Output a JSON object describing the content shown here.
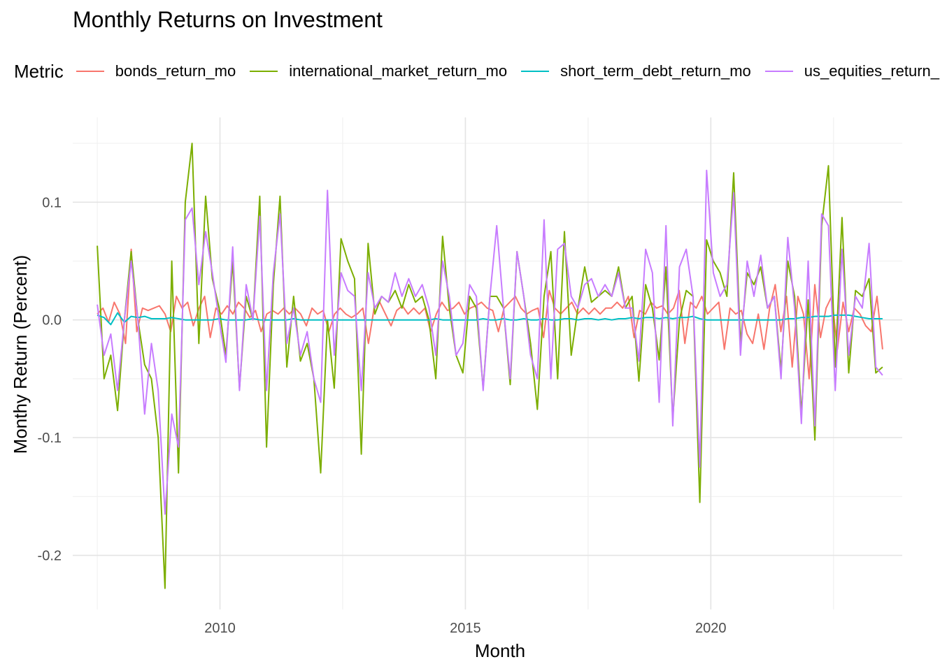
{
  "chart_data": {
    "type": "line",
    "title": "Monthly Returns on Investment",
    "xlabel": "Month",
    "ylabel": "Monthy Return (Percent)",
    "legend_title": "Metric",
    "legend_position": "top",
    "grid": true,
    "xlim": [
      2007.0,
      2023.9
    ],
    "ylim": [
      -0.246,
      0.172
    ],
    "x_ticks": [
      2010,
      2015,
      2020
    ],
    "y_ticks": [
      -0.2,
      -0.1,
      0.0,
      0.1
    ],
    "y_tick_labels": [
      "-0.2",
      "-0.1",
      "0.0",
      "0.1"
    ],
    "x_start": 2007.5,
    "x_step": 0.25,
    "series": [
      {
        "name": "bonds_return_mo",
        "color": "#F8766D",
        "values": [
          0.005,
          0.01,
          -0.002,
          0.015,
          0.005,
          -0.02,
          0.06,
          -0.01,
          0.01,
          0.008,
          0.01,
          0.012,
          0.005,
          -0.01,
          0.02,
          0.01,
          0.015,
          -0.005,
          0.01,
          0.02,
          -0.015,
          0.01,
          0.005,
          0.012,
          0.005,
          0.015,
          0.01,
          0.002,
          0.008,
          -0.01,
          0.005,
          0.008,
          0.005,
          0.01,
          0.005,
          0.01,
          0.005,
          -0.005,
          0.01,
          0.005,
          0.008,
          -0.01,
          0.005,
          0.01,
          0.005,
          0.002,
          0.005,
          0.01,
          -0.02,
          0.01,
          0.015,
          0.005,
          -0.005,
          0.008,
          0.012,
          0.005,
          0.01,
          0.005,
          0.01,
          -0.01,
          0.005,
          0.015,
          0.008,
          0.01,
          0.015,
          0.005,
          0.01,
          0.012,
          0.015,
          0.01,
          0.008,
          -0.01,
          0.01,
          0.015,
          0.02,
          0.01,
          0.005,
          0.008,
          0.01,
          -0.015,
          0.025,
          0.01,
          0.005,
          0.01,
          0.015,
          0.005,
          0.01,
          0.005,
          0.01,
          0.005,
          0.01,
          0.01,
          0.015,
          0.01,
          0.02,
          -0.015,
          0.008,
          0.005,
          0.015,
          0.01,
          0.012,
          0.005,
          0.01,
          0.025,
          -0.02,
          0.015,
          0.01,
          0.02,
          0.005,
          0.01,
          0.015,
          -0.025,
          0.01,
          0.005,
          0.008,
          -0.012,
          -0.02,
          0.005,
          -0.025,
          0.01,
          0.03,
          -0.01,
          0.02,
          -0.04,
          0.02,
          0.005,
          -0.05,
          0.03,
          -0.015,
          0.01,
          0.02,
          -0.025,
          0.015,
          -0.01,
          0.01,
          0.005,
          -0.005,
          -0.01,
          0.02,
          -0.025
        ]
      },
      {
        "name": "international_market_return_mo",
        "color": "#7CAE00",
        "values": [
          0.063,
          -0.05,
          -0.03,
          -0.077,
          0.0,
          0.058,
          0.0,
          -0.038,
          -0.05,
          -0.1,
          -0.228,
          0.05,
          -0.13,
          0.1,
          0.15,
          -0.02,
          0.105,
          0.035,
          0.01,
          -0.03,
          0.05,
          -0.058,
          0.02,
          0.0,
          0.105,
          -0.108,
          0.03,
          0.105,
          -0.04,
          0.02,
          -0.035,
          -0.02,
          -0.05,
          -0.13,
          0.0,
          -0.058,
          0.069,
          0.05,
          0.035,
          -0.114,
          0.065,
          0.005,
          0.02,
          0.015,
          0.025,
          0.01,
          0.03,
          0.015,
          0.02,
          0.0,
          -0.05,
          0.071,
          0.01,
          -0.03,
          -0.045,
          0.02,
          0.01,
          -0.058,
          0.02,
          0.02,
          0.01,
          -0.055,
          0.058,
          0.02,
          -0.02,
          -0.076,
          0.02,
          0.058,
          -0.05,
          0.075,
          -0.03,
          0.01,
          0.045,
          0.015,
          0.02,
          0.025,
          0.02,
          0.045,
          0.01,
          0.02,
          -0.052,
          0.03,
          0.01,
          -0.034,
          0.045,
          -0.084,
          0.0,
          0.025,
          0.02,
          -0.155,
          0.068,
          0.05,
          0.04,
          0.02,
          0.125,
          -0.02,
          0.04,
          0.03,
          0.045,
          0.01,
          0.02,
          -0.043,
          0.05,
          0.02,
          -0.08,
          0.017,
          -0.102,
          0.08,
          0.131,
          -0.04,
          0.087,
          -0.045,
          0.025,
          0.02,
          0.035,
          -0.045,
          -0.04
        ]
      },
      {
        "name": "short_term_debt_return_mo",
        "color": "#00BFC4",
        "values": [
          0.004,
          0.002,
          -0.004,
          0.006,
          -0.002,
          0.003,
          0.002,
          0.003,
          0.001,
          0.001,
          0.001,
          0.002,
          0.001,
          0.0,
          0.0,
          0.0,
          0.0,
          0.0,
          0.001,
          0.0,
          0.0,
          0.0,
          0.0,
          0.001,
          0.0,
          0.0,
          0.0,
          0.0,
          0.0,
          0.001,
          0.0,
          0.0,
          0.0,
          0.0,
          0.0,
          0.0,
          0.0,
          0.0,
          0.0,
          0.0,
          0.0,
          0.0,
          0.0,
          0.0,
          0.0,
          0.0,
          0.0,
          0.0,
          0.0,
          0.0,
          0.001,
          0.0,
          0.0,
          0.0,
          0.0,
          0.0,
          0.0,
          0.001,
          0.0,
          0.0,
          0.001,
          0.0,
          0.0,
          0.001,
          0.0,
          0.0,
          0.001,
          0.0,
          0.0,
          0.001,
          0.001,
          0.0,
          0.001,
          0.001,
          0.0,
          0.001,
          0.0,
          0.001,
          0.001,
          0.002,
          0.001,
          0.002,
          0.002,
          0.001,
          0.002,
          0.001,
          0.002,
          0.002,
          0.003,
          0.001,
          0.0,
          0.0,
          0.0,
          0.0,
          0.0,
          0.0,
          0.0,
          0.0,
          0.0,
          0.0,
          0.0,
          0.0,
          0.001,
          0.001,
          0.002,
          0.002,
          0.003,
          0.003,
          0.003,
          0.004,
          0.004,
          0.004,
          0.003,
          0.002,
          0.001,
          0.001,
          0.001
        ]
      },
      {
        "name": "us_equities_return_mo",
        "color": "#C77CFF",
        "values": [
          0.013,
          -0.03,
          -0.012,
          -0.06,
          0.0,
          0.05,
          0.0,
          -0.08,
          -0.02,
          -0.06,
          -0.165,
          -0.08,
          -0.108,
          0.085,
          0.095,
          0.03,
          0.075,
          0.04,
          0.0,
          -0.036,
          0.062,
          -0.06,
          0.03,
          0.0,
          0.088,
          -0.06,
          0.04,
          0.09,
          -0.02,
          0.01,
          -0.03,
          -0.01,
          -0.05,
          -0.07,
          0.11,
          -0.03,
          0.04,
          0.025,
          0.02,
          -0.06,
          0.04,
          0.01,
          0.02,
          0.015,
          0.04,
          0.02,
          0.035,
          0.02,
          0.03,
          0.01,
          -0.03,
          0.05,
          0.02,
          -0.03,
          -0.02,
          0.03,
          0.02,
          -0.06,
          0.02,
          0.08,
          0.01,
          -0.05,
          0.058,
          0.02,
          -0.03,
          -0.05,
          0.085,
          -0.05,
          0.06,
          0.065,
          0.02,
          0.01,
          0.03,
          0.035,
          0.02,
          0.03,
          0.02,
          0.04,
          0.01,
          0.01,
          -0.035,
          0.06,
          0.04,
          -0.07,
          0.08,
          -0.09,
          0.045,
          0.06,
          0.02,
          -0.125,
          0.127,
          0.04,
          0.02,
          0.03,
          0.108,
          -0.03,
          0.05,
          0.02,
          0.055,
          0.01,
          0.02,
          -0.05,
          0.07,
          0.01,
          -0.088,
          0.05,
          -0.09,
          0.09,
          0.08,
          -0.06,
          0.06,
          -0.03,
          0.02,
          0.01,
          0.065,
          -0.04,
          -0.047
        ]
      }
    ]
  }
}
